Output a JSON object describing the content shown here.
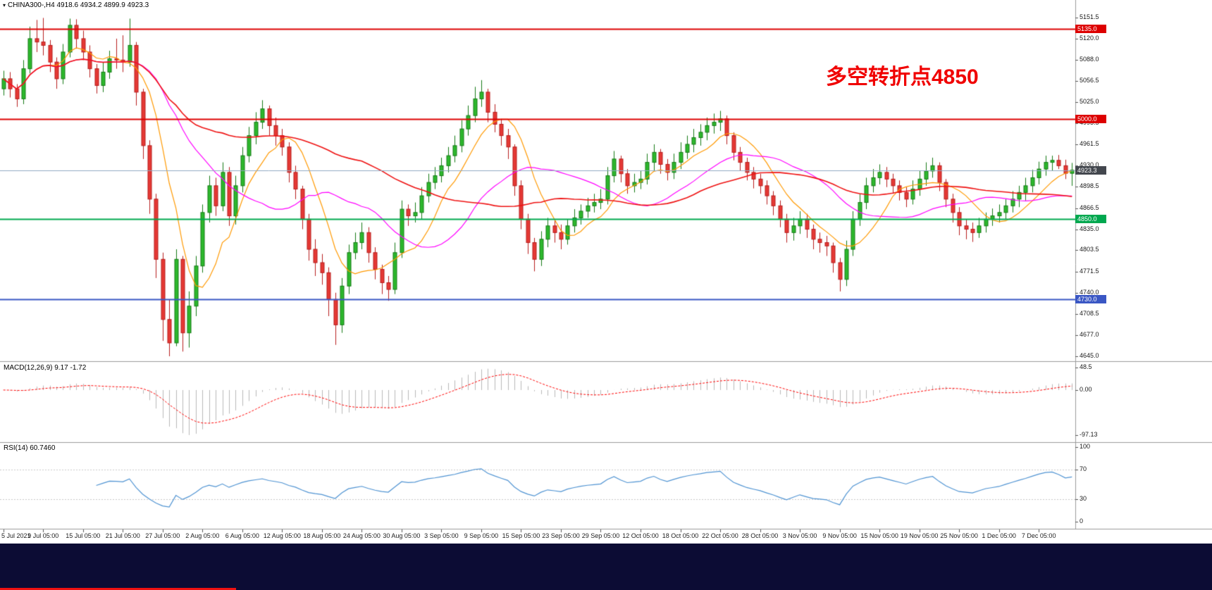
{
  "header": {
    "symbol_period": "CHINA300-,H4",
    "ohlc_text": "4918.6 4934.2 4899.9 4923.3"
  },
  "annotation": {
    "text": "多空转折点4850",
    "color": "#f00000"
  },
  "price_axis": {
    "ticks": [
      "5151.5",
      "5120.0",
      "5088.0",
      "5056.5",
      "5025.0",
      "4993.5",
      "4961.5",
      "4930.0",
      "4898.5",
      "4866.5",
      "4835.0",
      "4803.5",
      "4771.5",
      "4740.0",
      "4708.5",
      "4677.0",
      "4645.0"
    ]
  },
  "levels": [
    {
      "value": 5135.0,
      "label": "5135.0",
      "color": "#dd0000",
      "tag_color": "#dd0000",
      "width": 2,
      "kind": "resistance-line"
    },
    {
      "value": 5000.0,
      "label": "5000.0",
      "color": "#dd0000",
      "tag_color": "#dd0000",
      "width": 2,
      "kind": "resistance-line"
    },
    {
      "value": 4923.3,
      "label": "4923.3",
      "color": "#90a8c0",
      "tag_color": "#43474e",
      "width": 1,
      "kind": "current-price-line"
    },
    {
      "value": 4850.0,
      "label": "4850.0",
      "color": "#00a84f",
      "tag_color": "#00a84f",
      "width": 2,
      "kind": "support-line"
    },
    {
      "value": 4730.0,
      "label": "4730.0",
      "color": "#3a57c4",
      "tag_color": "#3a57c4",
      "width": 2,
      "kind": "support-line"
    }
  ],
  "macd_panel": {
    "label": "MACD(12,26,9)",
    "values_text": "9.17 -1.72",
    "axis_ticks": [
      "48.5",
      "0.00",
      "-97.13"
    ],
    "axis_values": [
      48.5,
      0,
      -97.13
    ],
    "fast": 12,
    "slow": 26,
    "signal": 9,
    "histogram_color": "#b8b8b8",
    "signal_color": "#ff0000"
  },
  "rsi_panel": {
    "label": "RSI(14)",
    "value_text": "60.7460",
    "period": 14,
    "value": 60.746,
    "axis_ticks": [
      "100",
      "70",
      "30",
      "0"
    ],
    "axis_values": [
      100,
      70,
      30,
      0
    ],
    "levels": [
      70,
      30
    ],
    "line_color": "#4f93d2",
    "level_color": "#c8c8c8"
  },
  "footer": {
    "bar_color": "#0c0c34",
    "accent_color": "#ee1111"
  },
  "chart_data": {
    "type": "candlestick",
    "title": "CHINA300- H4",
    "ylim": [
      4645.0,
      5151.5
    ],
    "label_every": 6,
    "x_labels": [
      "5 Jul 2021",
      "9 Jul 05:00",
      "15 Jul 05:00",
      "21 Jul 05:00",
      "27 Jul 05:00",
      "2 Aug 05:00",
      "6 Aug 05:00",
      "12 Aug 05:00",
      "18 Aug 05:00",
      "24 Aug 05:00",
      "30 Aug 05:00",
      "3 Sep 05:00",
      "9 Sep 05:00",
      "15 Sep 05:00",
      "23 Sep 05:00",
      "29 Sep 05:00",
      "12 Oct 05:00",
      "18 Oct 05:00",
      "22 Oct 05:00",
      "28 Oct 05:00",
      "3 Nov 05:00",
      "9 Nov 05:00",
      "15 Nov 05:00",
      "19 Nov 05:00",
      "25 Nov 05:00",
      "1 Dec 05:00",
      "7 Dec 05:00"
    ],
    "moving_averages": [
      {
        "window": 8,
        "color": "#ff9900",
        "name": "MA-fast"
      },
      {
        "window": 21,
        "color": "#ff00ff",
        "name": "MA-mid"
      },
      {
        "window": 55,
        "color": "#ee1111",
        "name": "MA-slow"
      }
    ],
    "up_color": "#2db82d",
    "up_border": "#157a15",
    "down_color": "#e53935",
    "down_border": "#b71c1c",
    "candles": [
      [
        5045,
        5072,
        5035,
        5060
      ],
      [
        5060,
        5070,
        5032,
        5045
      ],
      [
        5045,
        5052,
        5018,
        5030
      ],
      [
        5030,
        5088,
        5022,
        5075
      ],
      [
        5075,
        5138,
        5068,
        5120
      ],
      [
        5120,
        5148,
        5100,
        5115
      ],
      [
        5115,
        5151,
        5095,
        5110
      ],
      [
        5110,
        5118,
        5070,
        5085
      ],
      [
        5085,
        5092,
        5045,
        5060
      ],
      [
        5060,
        5112,
        5052,
        5100
      ],
      [
        5100,
        5150,
        5092,
        5140
      ],
      [
        5140,
        5149,
        5105,
        5120
      ],
      [
        5120,
        5132,
        5088,
        5100
      ],
      [
        5100,
        5110,
        5062,
        5075
      ],
      [
        5075,
        5082,
        5038,
        5050
      ],
      [
        5050,
        5085,
        5040,
        5070
      ],
      [
        5070,
        5102,
        5060,
        5090
      ],
      [
        5090,
        5120,
        5075,
        5088
      ],
      [
        5088,
        5125,
        5070,
        5085
      ],
      [
        5085,
        5150,
        5078,
        5110
      ],
      [
        5110,
        5115,
        5020,
        5040
      ],
      [
        5040,
        5045,
        4940,
        4960
      ],
      [
        4960,
        4968,
        4858,
        4880
      ],
      [
        4880,
        4888,
        4762,
        4790
      ],
      [
        4790,
        4800,
        4668,
        4700
      ],
      [
        4700,
        4730,
        4645,
        4665
      ],
      [
        4665,
        4805,
        4660,
        4790
      ],
      [
        4790,
        4795,
        4652,
        4680
      ],
      [
        4680,
        4742,
        4658,
        4720
      ],
      [
        4720,
        4795,
        4705,
        4780
      ],
      [
        4780,
        4872,
        4770,
        4860
      ],
      [
        4860,
        4915,
        4845,
        4900
      ],
      [
        4900,
        4912,
        4855,
        4870
      ],
      [
        4870,
        4935,
        4862,
        4920
      ],
      [
        4920,
        4928,
        4840,
        4855
      ],
      [
        4855,
        4915,
        4842,
        4900
      ],
      [
        4900,
        4958,
        4890,
        4945
      ],
      [
        4945,
        4988,
        4935,
        4975
      ],
      [
        4975,
        5010,
        4962,
        4995
      ],
      [
        4995,
        5028,
        4985,
        5015
      ],
      [
        5015,
        5020,
        4975,
        4990
      ],
      [
        4990,
        5002,
        4960,
        4975
      ],
      [
        4975,
        4985,
        4945,
        4958
      ],
      [
        4958,
        4965,
        4905,
        4920
      ],
      [
        4920,
        4930,
        4880,
        4895
      ],
      [
        4895,
        4900,
        4835,
        4850
      ],
      [
        4850,
        4858,
        4788,
        4805
      ],
      [
        4805,
        4820,
        4765,
        4785
      ],
      [
        4785,
        4798,
        4752,
        4770
      ],
      [
        4770,
        4778,
        4705,
        4730
      ],
      [
        4730,
        4740,
        4662,
        4692
      ],
      [
        4692,
        4762,
        4680,
        4750
      ],
      [
        4750,
        4812,
        4738,
        4800
      ],
      [
        4800,
        4830,
        4790,
        4815
      ],
      [
        4815,
        4845,
        4805,
        4830
      ],
      [
        4830,
        4838,
        4785,
        4800
      ],
      [
        4800,
        4808,
        4760,
        4775
      ],
      [
        4775,
        4782,
        4738,
        4755
      ],
      [
        4755,
        4765,
        4728,
        4745
      ],
      [
        4745,
        4815,
        4738,
        4800
      ],
      [
        4800,
        4878,
        4792,
        4865
      ],
      [
        4865,
        4872,
        4840,
        4855
      ],
      [
        4855,
        4875,
        4845,
        4860
      ],
      [
        4860,
        4898,
        4850,
        4885
      ],
      [
        4885,
        4918,
        4875,
        4905
      ],
      [
        4905,
        4928,
        4895,
        4915
      ],
      [
        4915,
        4942,
        4905,
        4930
      ],
      [
        4930,
        4958,
        4920,
        4945
      ],
      [
        4945,
        4975,
        4935,
        4960
      ],
      [
        4960,
        4998,
        4950,
        4985
      ],
      [
        4985,
        5020,
        4975,
        5005
      ],
      [
        5005,
        5048,
        4995,
        5030
      ],
      [
        5030,
        5058,
        5018,
        5040
      ],
      [
        5040,
        5045,
        4995,
        5010
      ],
      [
        5010,
        5022,
        4980,
        4992
      ],
      [
        4992,
        5000,
        4960,
        4975
      ],
      [
        4975,
        4985,
        4940,
        4958
      ],
      [
        4958,
        4962,
        4885,
        4900
      ],
      [
        4900,
        4908,
        4835,
        4850
      ],
      [
        4850,
        4858,
        4798,
        4815
      ],
      [
        4815,
        4822,
        4772,
        4790
      ],
      [
        4790,
        4832,
        4780,
        4820
      ],
      [
        4820,
        4852,
        4808,
        4840
      ],
      [
        4840,
        4848,
        4815,
        4830
      ],
      [
        4830,
        4842,
        4805,
        4820
      ],
      [
        4820,
        4850,
        4812,
        4840
      ],
      [
        4840,
        4865,
        4830,
        4852
      ],
      [
        4852,
        4872,
        4842,
        4862
      ],
      [
        4862,
        4882,
        4852,
        4870
      ],
      [
        4870,
        4888,
        4860,
        4875
      ],
      [
        4875,
        4895,
        4865,
        4880
      ],
      [
        4880,
        4928,
        4872,
        4915
      ],
      [
        4915,
        4952,
        4905,
        4940
      ],
      [
        4940,
        4945,
        4905,
        4918
      ],
      [
        4918,
        4925,
        4888,
        4900
      ],
      [
        4900,
        4918,
        4890,
        4905
      ],
      [
        4905,
        4922,
        4895,
        4910
      ],
      [
        4910,
        4948,
        4902,
        4935
      ],
      [
        4935,
        4962,
        4922,
        4950
      ],
      [
        4950,
        4955,
        4918,
        4932
      ],
      [
        4932,
        4940,
        4908,
        4920
      ],
      [
        4920,
        4948,
        4910,
        4935
      ],
      [
        4935,
        4965,
        4925,
        4950
      ],
      [
        4950,
        4975,
        4940,
        4962
      ],
      [
        4962,
        4985,
        4950,
        4972
      ],
      [
        4972,
        4992,
        4960,
        4980
      ],
      [
        4980,
        5002,
        4968,
        4990
      ],
      [
        4990,
        5008,
        4978,
        4995
      ],
      [
        4995,
        5012,
        4982,
        5000
      ],
      [
        5000,
        5005,
        4962,
        4975
      ],
      [
        4975,
        4980,
        4938,
        4950
      ],
      [
        4950,
        4958,
        4922,
        4935
      ],
      [
        4935,
        4942,
        4908,
        4920
      ],
      [
        4920,
        4928,
        4896,
        4910
      ],
      [
        4910,
        4918,
        4888,
        4900
      ],
      [
        4900,
        4908,
        4872,
        4885
      ],
      [
        4885,
        4892,
        4856,
        4870
      ],
      [
        4870,
        4878,
        4838,
        4850
      ],
      [
        4850,
        4858,
        4815,
        4830
      ],
      [
        4830,
        4852,
        4818,
        4840
      ],
      [
        4840,
        4862,
        4828,
        4850
      ],
      [
        4850,
        4858,
        4822,
        4835
      ],
      [
        4835,
        4842,
        4805,
        4820
      ],
      [
        4820,
        4830,
        4800,
        4815
      ],
      [
        4815,
        4825,
        4795,
        4810
      ],
      [
        4810,
        4815,
        4770,
        4785
      ],
      [
        4785,
        4792,
        4742,
        4760
      ],
      [
        4760,
        4818,
        4750,
        4805
      ],
      [
        4805,
        4862,
        4795,
        4850
      ],
      [
        4850,
        4888,
        4840,
        4875
      ],
      [
        4875,
        4912,
        4865,
        4900
      ],
      [
        4900,
        4925,
        4890,
        4912
      ],
      [
        4912,
        4932,
        4902,
        4920
      ],
      [
        4920,
        4928,
        4898,
        4910
      ],
      [
        4910,
        4918,
        4888,
        4900
      ],
      [
        4900,
        4908,
        4878,
        4890
      ],
      [
        4890,
        4898,
        4868,
        4880
      ],
      [
        4880,
        4908,
        4872,
        4895
      ],
      [
        4895,
        4922,
        4885,
        4910
      ],
      [
        4910,
        4935,
        4900,
        4922
      ],
      [
        4922,
        4942,
        4912,
        4930
      ],
      [
        4930,
        4935,
        4892,
        4905
      ],
      [
        4905,
        4910,
        4868,
        4880
      ],
      [
        4880,
        4888,
        4845,
        4860
      ],
      [
        4860,
        4868,
        4826,
        4840
      ],
      [
        4840,
        4850,
        4820,
        4835
      ],
      [
        4835,
        4845,
        4816,
        4830
      ],
      [
        4830,
        4852,
        4822,
        4840
      ],
      [
        4840,
        4860,
        4830,
        4850
      ],
      [
        4850,
        4866,
        4840,
        4855
      ],
      [
        4855,
        4872,
        4845,
        4860
      ],
      [
        4860,
        4880,
        4850,
        4870
      ],
      [
        4870,
        4892,
        4860,
        4880
      ],
      [
        4880,
        4900,
        4868,
        4890
      ],
      [
        4890,
        4912,
        4878,
        4900
      ],
      [
        4900,
        4924,
        4890,
        4912
      ],
      [
        4912,
        4936,
        4902,
        4925
      ],
      [
        4925,
        4945,
        4915,
        4935
      ],
      [
        4935,
        4945,
        4922,
        4938
      ],
      [
        4938,
        4946,
        4925,
        4930
      ],
      [
        4930,
        4939,
        4910,
        4918.6
      ],
      [
        4918.6,
        4934.2,
        4899.9,
        4923.3
      ]
    ]
  }
}
